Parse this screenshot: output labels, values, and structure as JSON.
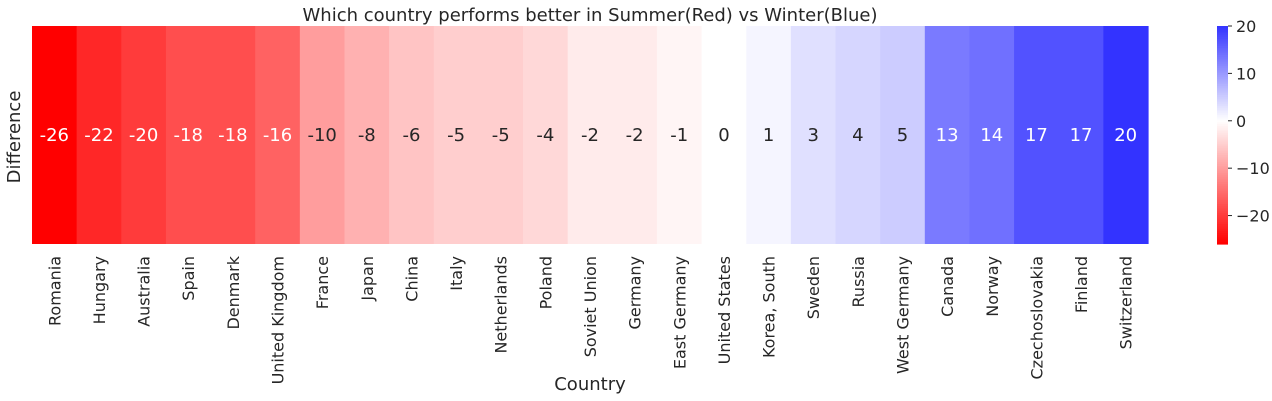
{
  "chart_data": {
    "type": "heatmap",
    "title": "Which country performs better in Summer(Red) vs Winter(Blue)",
    "xlabel": "Country",
    "ylabel": "Difference",
    "categories": [
      "Romania",
      "Hungary",
      "Australia",
      "Spain",
      "Denmark",
      "United Kingdom",
      "France",
      "Japan",
      "China",
      "Italy",
      "Netherlands",
      "Poland",
      "Soviet Union",
      "Germany",
      "East Germany",
      "United States",
      "Korea, South",
      "Sweden",
      "Russia",
      "West Germany",
      "Canada",
      "Norway",
      "Czechoslovakia",
      "Finland",
      "Switzerland"
    ],
    "values": [
      -26,
      -22,
      -20,
      -18,
      -18,
      -16,
      -10,
      -8,
      -6,
      -5,
      -5,
      -4,
      -2,
      -2,
      -1,
      0,
      1,
      3,
      4,
      5,
      13,
      14,
      17,
      17,
      20
    ],
    "colorbar": {
      "range": [
        -26,
        20
      ],
      "ticks": [
        -20,
        -10,
        0,
        10,
        20
      ],
      "tick_labels": [
        "−20",
        "−10",
        "0",
        "10",
        "20"
      ],
      "colormap": "bwr",
      "low_color": "#ff0000",
      "mid_color": "#ffffff",
      "high_color": "#3333ff"
    },
    "annotate": true,
    "legend": "colorbar-right"
  }
}
